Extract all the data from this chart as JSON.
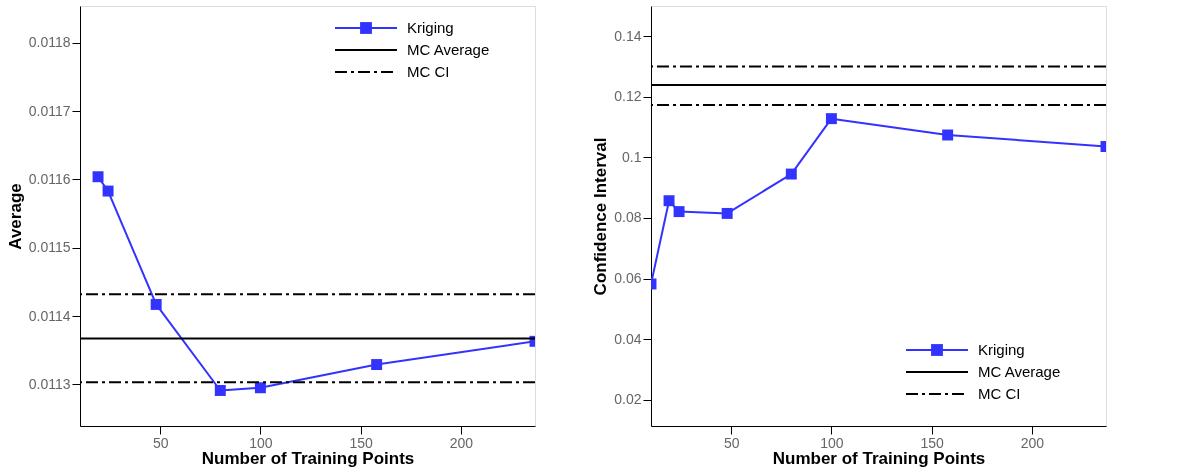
{
  "chart_data": [
    {
      "type": "line",
      "xlabel": "Number of Training Points",
      "ylabel": "Average",
      "series": [
        {
          "name": "Kriging",
          "color": "#3333ff",
          "x": [
            19,
            24,
            48,
            80,
            100,
            158,
            237
          ],
          "values": [
            0.011604,
            0.011583,
            0.011417,
            0.011291,
            0.011295,
            0.011329,
            0.011363
          ]
        }
      ],
      "marker": "square",
      "xlim": [
        10,
        237
      ],
      "xticks": [
        50,
        100,
        150,
        200
      ],
      "ylim": [
        0.011239,
        0.011854
      ],
      "yticks": [
        0.0113,
        0.0114,
        0.0115,
        0.0116,
        0.0117,
        0.0118
      ],
      "ref_lines": [
        {
          "axis": "y",
          "value": 0.011367,
          "label": "MC Average",
          "color": "#000000",
          "line_style": "solid"
        },
        {
          "axis": "y",
          "value": 0.011432,
          "label": "MC CI",
          "color": "#000000",
          "line_style": "dashdot"
        },
        {
          "axis": "y",
          "value": 0.011303,
          "color": "#000000",
          "line_style": "dashdot"
        }
      ],
      "grid": false,
      "legend": "top right"
    },
    {
      "type": "line",
      "xlabel": "Number of Training Points",
      "ylabel": "Confidence Interval",
      "x": [
        10,
        19,
        24,
        48,
        80,
        100,
        158,
        237
      ],
      "series": [
        {
          "name": "Kriging",
          "color": "#3333ff",
          "values": [
            0.0582,
            0.0857,
            0.0821,
            0.0815,
            0.0945,
            0.1128,
            0.1074,
            0.1036
          ]
        }
      ],
      "marker": "square",
      "xlim": [
        10,
        237
      ],
      "xticks": [
        50,
        100,
        150,
        200
      ],
      "ylim": [
        0.0113,
        0.15
      ],
      "yticks": [
        0.02,
        0.04,
        0.06,
        0.08,
        0.1,
        0.12,
        0.14
      ],
      "ref_lines": [
        {
          "axis": "y",
          "value": 0.1239,
          "label": "MC Average",
          "color": "#000000",
          "line_style": "solid"
        },
        {
          "axis": "y",
          "value": 0.13,
          "label": "MC CI",
          "color": "#000000",
          "line_style": "dashdot"
        },
        {
          "axis": "y",
          "value": 0.1173,
          "color": "#000000",
          "line_style": "dashdot"
        }
      ],
      "grid": false,
      "legend": "bottom right"
    }
  ]
}
